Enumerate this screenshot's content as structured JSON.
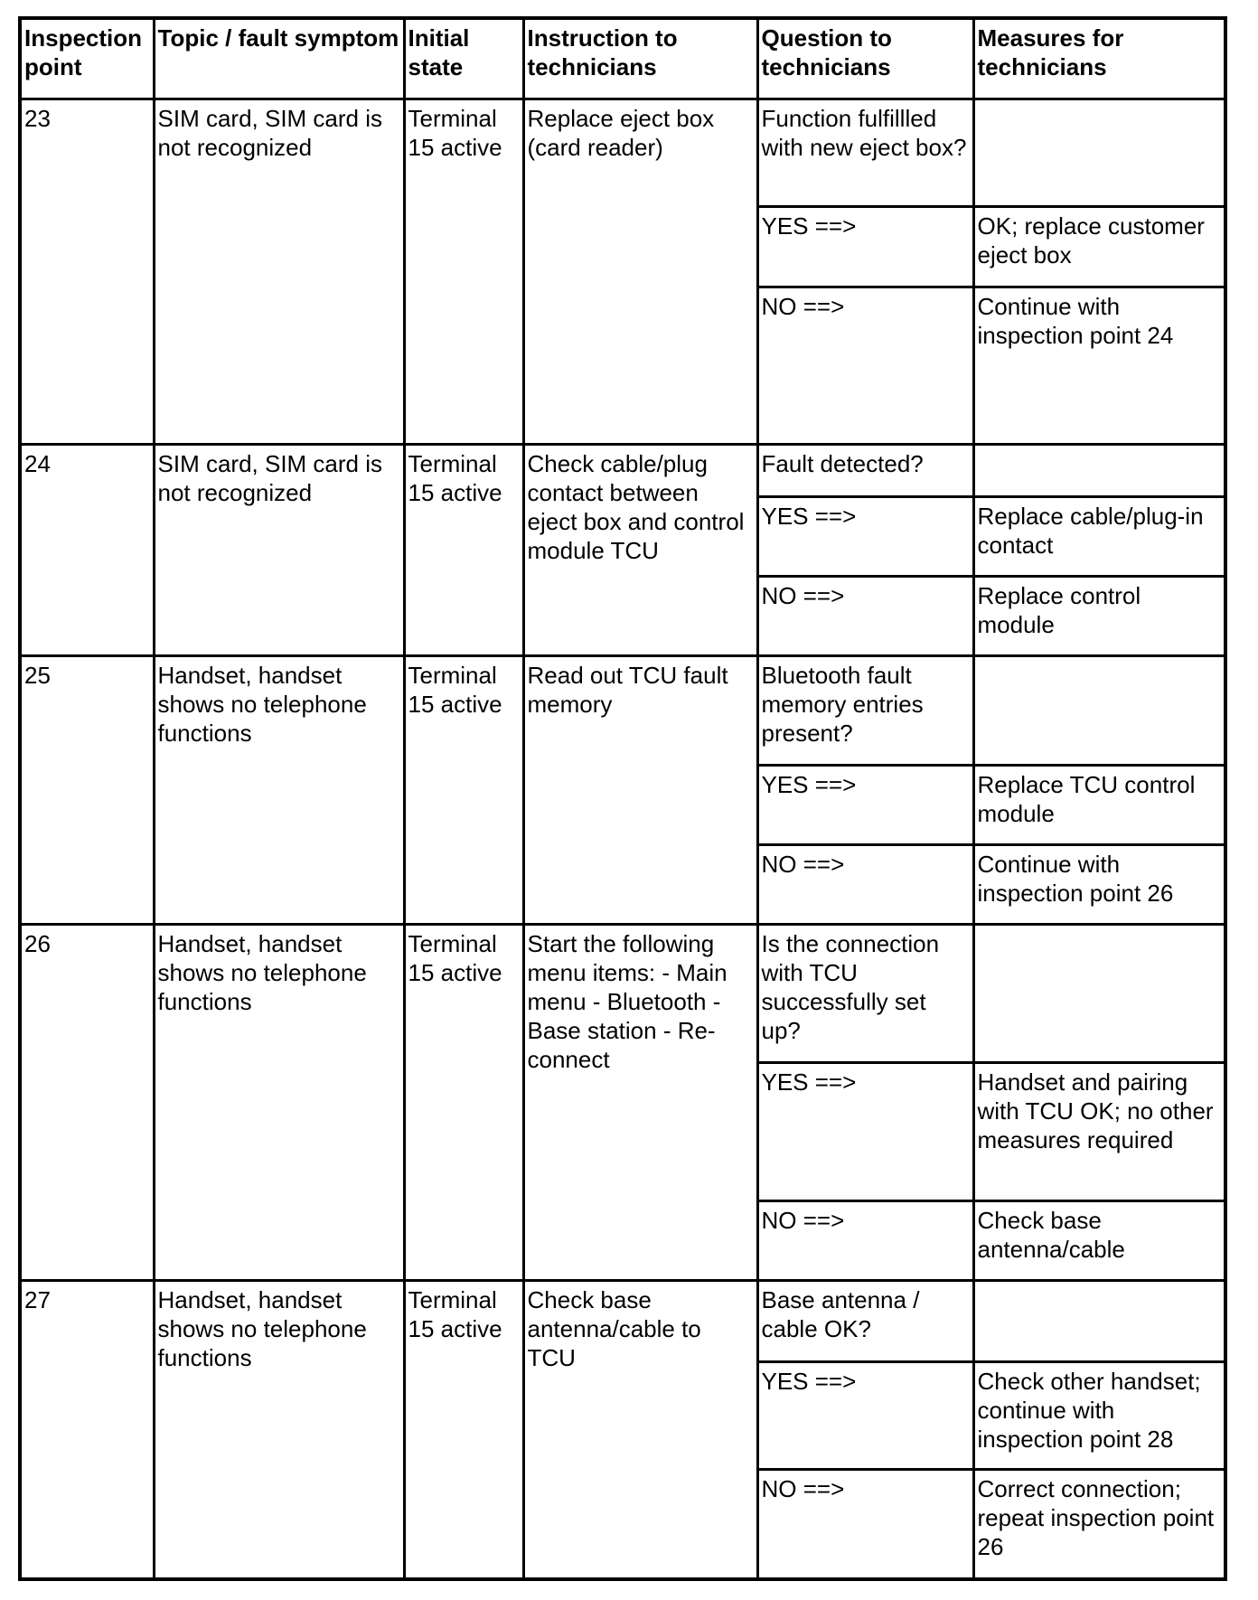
{
  "headers": [
    "Inspection point",
    "Topic / fault symptom",
    "Initial state",
    "Instruction to technicians",
    "Question to technicians",
    "Measures for technicians"
  ],
  "rows": [
    {
      "point": "23",
      "topic": "SIM card, SIM card is not recognized",
      "state": "Terminal 15 active",
      "instruction": "Replace eject box (card reader)",
      "sub": [
        {
          "q": "Function fulfillled with new eject box?",
          "m": ""
        },
        {
          "q": "YES ==>",
          "m": "OK; replace customer eject box"
        },
        {
          "q": "NO ==>",
          "m": "Continue with inspection point 24"
        }
      ]
    },
    {
      "point": "24",
      "topic": "SIM card, SIM card is not recognized",
      "state": "Terminal 15 active",
      "instruction": "Check cable/plug contact between eject box and control module TCU",
      "sub": [
        {
          "q": "Fault detected?",
          "m": ""
        },
        {
          "q": "YES ==>",
          "m": "Replace cable/plug-in contact"
        },
        {
          "q": "NO ==>",
          "m": "Replace control module"
        }
      ]
    },
    {
      "point": "25",
      "topic": "Handset, handset shows no telephone functions",
      "state": "Terminal 15 active",
      "instruction": "Read out TCU fault memory",
      "sub": [
        {
          "q": "Bluetooth fault memory entries present?",
          "m": ""
        },
        {
          "q": "YES ==>",
          "m": "Replace TCU control module"
        },
        {
          "q": "NO ==>",
          "m": "Continue with inspection point 26"
        }
      ]
    },
    {
      "point": "26",
      "topic": "Handset, handset shows no telephone functions",
      "state": "Terminal 15 active",
      "instruction": "Start the following menu items: - Main menu - Bluetooth - Base station - Re-connect",
      "sub": [
        {
          "q": "Is the connection with TCU successfully set up?",
          "m": ""
        },
        {
          "q": "YES ==>",
          "m": "Handset and pairing with TCU OK; no other measures required"
        },
        {
          "q": "NO ==>",
          "m": "Check base antenna/cable"
        }
      ]
    },
    {
      "point": "27",
      "topic": "Handset, handset shows no telephone functions",
      "state": "Terminal 15 active",
      "instruction": "Check base antenna/cable to TCU",
      "sub": [
        {
          "q": "Base antenna / cable OK?",
          "m": ""
        },
        {
          "q": "YES ==>",
          "m": "Check other handset; continue with inspection point 28"
        },
        {
          "q": "NO ==>",
          "m": "Correct connection; repeat inspection point 26"
        }
      ]
    }
  ]
}
